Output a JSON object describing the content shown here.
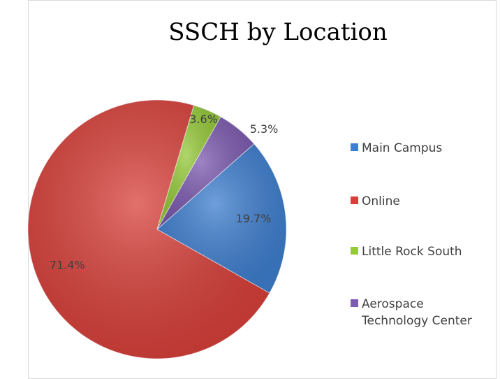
{
  "chart_data": {
    "type": "pie",
    "title": "SSCH by Location",
    "categories": [
      "Main Campus",
      "Online",
      "Little Rock South",
      "Aerospace Technology Center"
    ],
    "values": [
      19.7,
      71.4,
      3.6,
      5.3
    ],
    "value_labels": [
      "19.7%",
      "71.4%",
      "3.6%",
      "5.3%"
    ],
    "colors": [
      "#3f7fcf",
      "#d8413b",
      "#95c93a",
      "#7d5bb0"
    ],
    "legend": "right"
  }
}
